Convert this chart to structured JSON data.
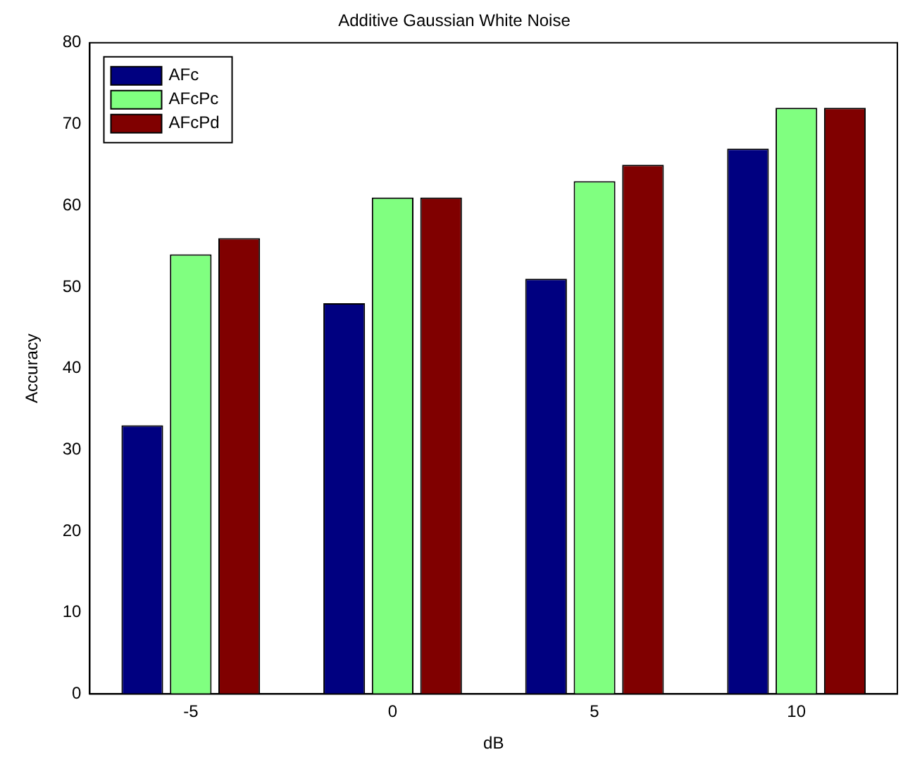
{
  "chart_data": {
    "type": "bar",
    "title": "Additive Gaussian White Noise",
    "xlabel": "dB",
    "ylabel": "Accuracy",
    "categories": [
      "-5",
      "0",
      "5",
      "10"
    ],
    "series": [
      {
        "name": "AFc",
        "color": "#000080",
        "values": [
          33,
          48,
          51,
          67
        ]
      },
      {
        "name": "AFcPc",
        "color": "#80ff80",
        "values": [
          54,
          61,
          63,
          72
        ]
      },
      {
        "name": "AFcPd",
        "color": "#800000",
        "values": [
          56,
          61,
          65,
          72
        ]
      }
    ],
    "ylim": [
      0,
      80
    ],
    "yticks": [
      0,
      10,
      20,
      30,
      40,
      50,
      60,
      70,
      80
    ],
    "grid": false,
    "legend": "top left"
  }
}
